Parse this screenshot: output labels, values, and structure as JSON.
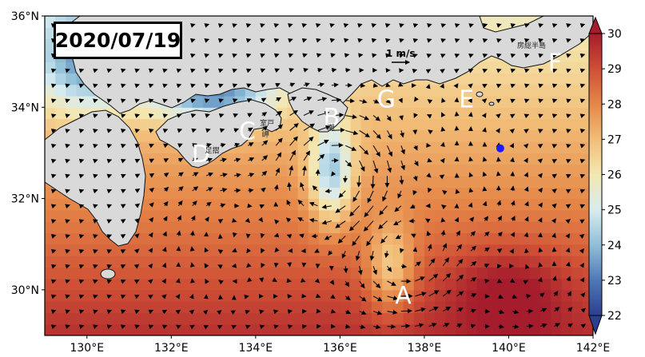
{
  "map": {
    "date": "2020/07/19",
    "lon_range": [
      129,
      142
    ],
    "lat_range": [
      29,
      36
    ],
    "x_ticks": [
      {
        "value": 130,
        "label": "130°E"
      },
      {
        "value": 132,
        "label": "132°E"
      },
      {
        "value": 134,
        "label": "134°E"
      },
      {
        "value": 136,
        "label": "136°E"
      },
      {
        "value": 138,
        "label": "138°E"
      },
      {
        "value": 140,
        "label": "140°E"
      },
      {
        "value": 142,
        "label": "142°E"
      }
    ],
    "y_ticks": [
      {
        "value": 30,
        "label": "30°N"
      },
      {
        "value": 32,
        "label": "32°N"
      },
      {
        "value": 34,
        "label": "34°N"
      },
      {
        "value": 36,
        "label": "36°N"
      }
    ],
    "scale_arrow": {
      "label": "1 m/s",
      "speed": 1
    },
    "region_labels": [
      {
        "text": "A",
        "lon": 137.5,
        "lat": 29.7
      },
      {
        "text": "B",
        "lon": 135.8,
        "lat": 33.6
      },
      {
        "text": "C",
        "lon": 133.8,
        "lat": 33.3
      },
      {
        "text": "D",
        "lon": 132.7,
        "lat": 32.8
      },
      {
        "text": "E",
        "lon": 139.0,
        "lat": 34.0
      },
      {
        "text": "F",
        "lon": 141.1,
        "lat": 34.8
      },
      {
        "text": "G",
        "lon": 137.1,
        "lat": 34.0
      }
    ],
    "place_labels": [
      {
        "text": "室戸",
        "lon": 134.1,
        "lat": 33.6
      },
      {
        "text": "岬",
        "lon": 134.15,
        "lat": 33.35
      },
      {
        "text": "潮",
        "lon": 135.7,
        "lat": 33.5
      },
      {
        "text": "足摺",
        "lon": 132.8,
        "lat": 33.0
      },
      {
        "text": "房総半島",
        "lon": 140.2,
        "lat": 35.3
      }
    ],
    "marker": {
      "lon": 139.8,
      "lat": 33.1,
      "color": "#1a1aff"
    },
    "colors": {
      "land": "#d9d9d9",
      "coast": "#111111",
      "vector": "#000000"
    }
  },
  "colorbar": {
    "min": 22,
    "max": 30,
    "ticks": [
      22,
      23,
      24,
      25,
      26,
      27,
      28,
      29,
      30
    ],
    "extend": "both",
    "colors": [
      "#2b3f8f",
      "#4e79b7",
      "#8fbfd8",
      "#d8ecf0",
      "#f4e7b0",
      "#f2bd78",
      "#e58748",
      "#cf4f35",
      "#a51d2c"
    ]
  }
}
